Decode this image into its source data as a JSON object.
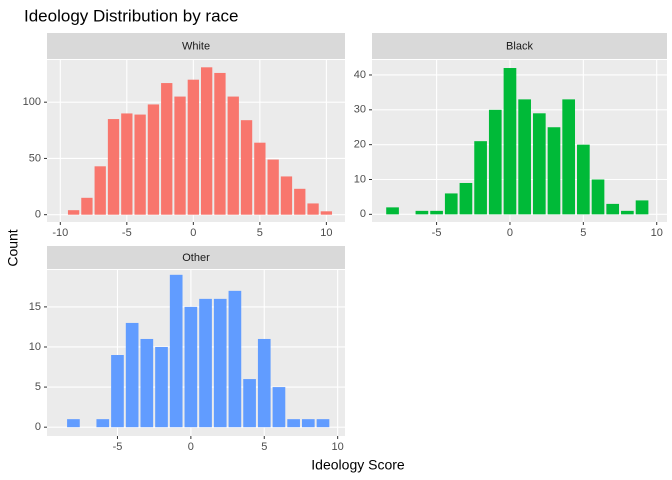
{
  "title": "Ideology Distribution by race",
  "x_label": "Ideology Score",
  "y_label": "Count",
  "chart_data": [
    {
      "type": "histogram",
      "strip": "White",
      "color": "#f8766d",
      "bins": [
        -9.5,
        -8.5,
        -7.5,
        -6.5,
        -5.5,
        -4.5,
        -3.5,
        -2.5,
        -1.5,
        -0.5,
        0.5,
        1.5,
        2.5,
        3.5,
        4.5,
        5.5,
        6.5,
        7.5,
        8.5,
        9.5,
        10.5
      ],
      "values": [
        4,
        15,
        43,
        85,
        90,
        89,
        98,
        117,
        105,
        120,
        131,
        126,
        105,
        84,
        64,
        49,
        34,
        23,
        10,
        3
      ],
      "xlim": [
        -11,
        11.4
      ],
      "xticks": [
        -10,
        -5,
        0,
        5,
        10
      ],
      "ylim": [
        -6.5,
        137.5
      ],
      "yticks": [
        0,
        50,
        100
      ]
    },
    {
      "type": "histogram",
      "strip": "Black",
      "color": "#00ba38",
      "bins": [
        -8.5,
        -7.5,
        -6.5,
        -5.5,
        -4.5,
        -3.5,
        -2.5,
        -1.5,
        -0.5,
        0.5,
        1.5,
        2.5,
        3.5,
        4.5,
        5.5,
        6.5,
        7.5,
        8.5,
        9.5
      ],
      "values": [
        2,
        0,
        1,
        1,
        6,
        9,
        21,
        30,
        42,
        33,
        29,
        25,
        33,
        20,
        10,
        3,
        1,
        4
      ],
      "xlim": [
        -9.4,
        10.7
      ],
      "xticks": [
        -5,
        0,
        5,
        10
      ],
      "ylim": [
        -2.2,
        44.3
      ],
      "yticks": [
        0,
        10,
        20,
        30,
        40
      ]
    },
    {
      "type": "histogram",
      "strip": "Other",
      "color": "#619cff",
      "bins": [
        -8.5,
        -7.5,
        -6.5,
        -5.5,
        -4.5,
        -3.5,
        -2.5,
        -1.5,
        -0.5,
        0.5,
        1.5,
        2.5,
        3.5,
        4.5,
        5.5,
        6.5,
        7.5,
        8.5,
        9.5
      ],
      "values": [
        1,
        0,
        1,
        9,
        13,
        11,
        10,
        19,
        15,
        16,
        16,
        17,
        6,
        11,
        5,
        1,
        1,
        1
      ],
      "xlim": [
        -9.8,
        10.5
      ],
      "xticks": [
        -5,
        0,
        5,
        10
      ],
      "ylim": [
        -1.1,
        19.6
      ],
      "yticks": [
        0,
        5,
        10,
        15
      ]
    }
  ]
}
